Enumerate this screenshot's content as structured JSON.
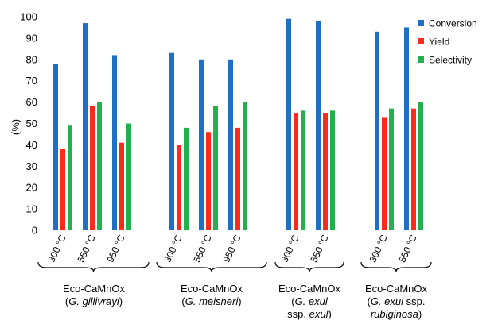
{
  "chart_data": {
    "type": "bar",
    "ylabel": "(%)",
    "ylim": [
      0,
      100
    ],
    "yticks": [
      0,
      10,
      20,
      30,
      40,
      50,
      60,
      70,
      80,
      90,
      100
    ],
    "grid": false,
    "legend_position": "top-right",
    "series": [
      {
        "name": "Conversion",
        "color": "#1f6fc5"
      },
      {
        "name": "Yield",
        "color": "#ff2a1a"
      },
      {
        "name": "Selectivity",
        "color": "#22b14c"
      }
    ],
    "groups": [
      {
        "label_line1": "Eco-CaMnOx",
        "label_line2": "(G. gillivrayi)",
        "label_line3": "",
        "categories": [
          "300 °C",
          "550 °C",
          "950 °C"
        ],
        "values": [
          [
            78,
            38,
            49
          ],
          [
            97,
            58,
            60
          ],
          [
            82,
            41,
            50
          ]
        ]
      },
      {
        "label_line1": "Eco-CaMnOx",
        "label_line2": "(G. meisneri)",
        "label_line3": "",
        "categories": [
          "300 °C",
          "550 °C",
          "950 °C"
        ],
        "values": [
          [
            83,
            40,
            48
          ],
          [
            80,
            46,
            58
          ],
          [
            80,
            48,
            60
          ]
        ]
      },
      {
        "label_line1": "Eco-CaMnOx",
        "label_line2": "(G. exul",
        "label_line3": "ssp. exul)",
        "categories": [
          "300 °C",
          "550 °C"
        ],
        "values": [
          [
            99,
            55,
            56
          ],
          [
            98,
            55,
            56
          ]
        ]
      },
      {
        "label_line1": "Eco-CaMnOx",
        "label_line2": "(G. exul ssp.",
        "label_line3": "rubiginosa)",
        "categories": [
          "300 °C",
          "550 °C"
        ],
        "values": [
          [
            93,
            53,
            57
          ],
          [
            95,
            57,
            60
          ]
        ]
      }
    ]
  }
}
